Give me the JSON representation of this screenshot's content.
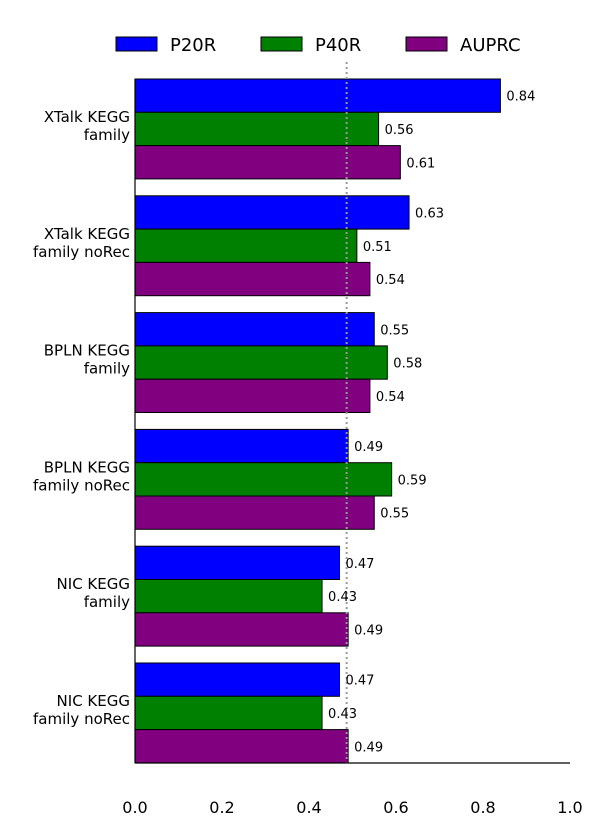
{
  "chart_data": {
    "type": "bar",
    "orientation": "horizontal",
    "categories": [
      [
        "XTalk KEGG",
        "family"
      ],
      [
        "XTalk KEGG",
        "family noRec"
      ],
      [
        "BPLN KEGG",
        "family"
      ],
      [
        "BPLN KEGG",
        "family noRec"
      ],
      [
        "NIC KEGG",
        "family"
      ],
      [
        "NIC KEGG",
        "family noRec"
      ]
    ],
    "series": [
      {
        "name": "P20R",
        "color": "#0000ff",
        "values": [
          0.84,
          0.63,
          0.55,
          0.49,
          0.47,
          0.47
        ]
      },
      {
        "name": "P40R",
        "color": "#008000",
        "values": [
          0.56,
          0.51,
          0.58,
          0.59,
          0.43,
          0.43
        ]
      },
      {
        "name": "AUPRC",
        "color": "#800080",
        "values": [
          0.61,
          0.54,
          0.54,
          0.55,
          0.49,
          0.49
        ]
      }
    ],
    "data_labels": [
      [
        "0.84",
        "0.56",
        "0.61"
      ],
      [
        "0.63",
        "0.51",
        "0.54"
      ],
      [
        "0.55",
        "0.58",
        "0.54"
      ],
      [
        "0.49",
        "0.59",
        "0.55"
      ],
      [
        "0.47",
        "0.43",
        "0.49"
      ],
      [
        "0.47",
        "0.43",
        "0.49"
      ]
    ],
    "xlim": [
      0.0,
      1.0
    ],
    "xticks": [
      "0.0",
      "0.2",
      "0.4",
      "0.6",
      "0.8",
      "1.0"
    ],
    "reference_line": {
      "x": 0.49,
      "style": "dotted",
      "color": "#999999"
    },
    "legend_position": "top",
    "grid": false,
    "title": "",
    "xlabel": "",
    "ylabel": ""
  }
}
